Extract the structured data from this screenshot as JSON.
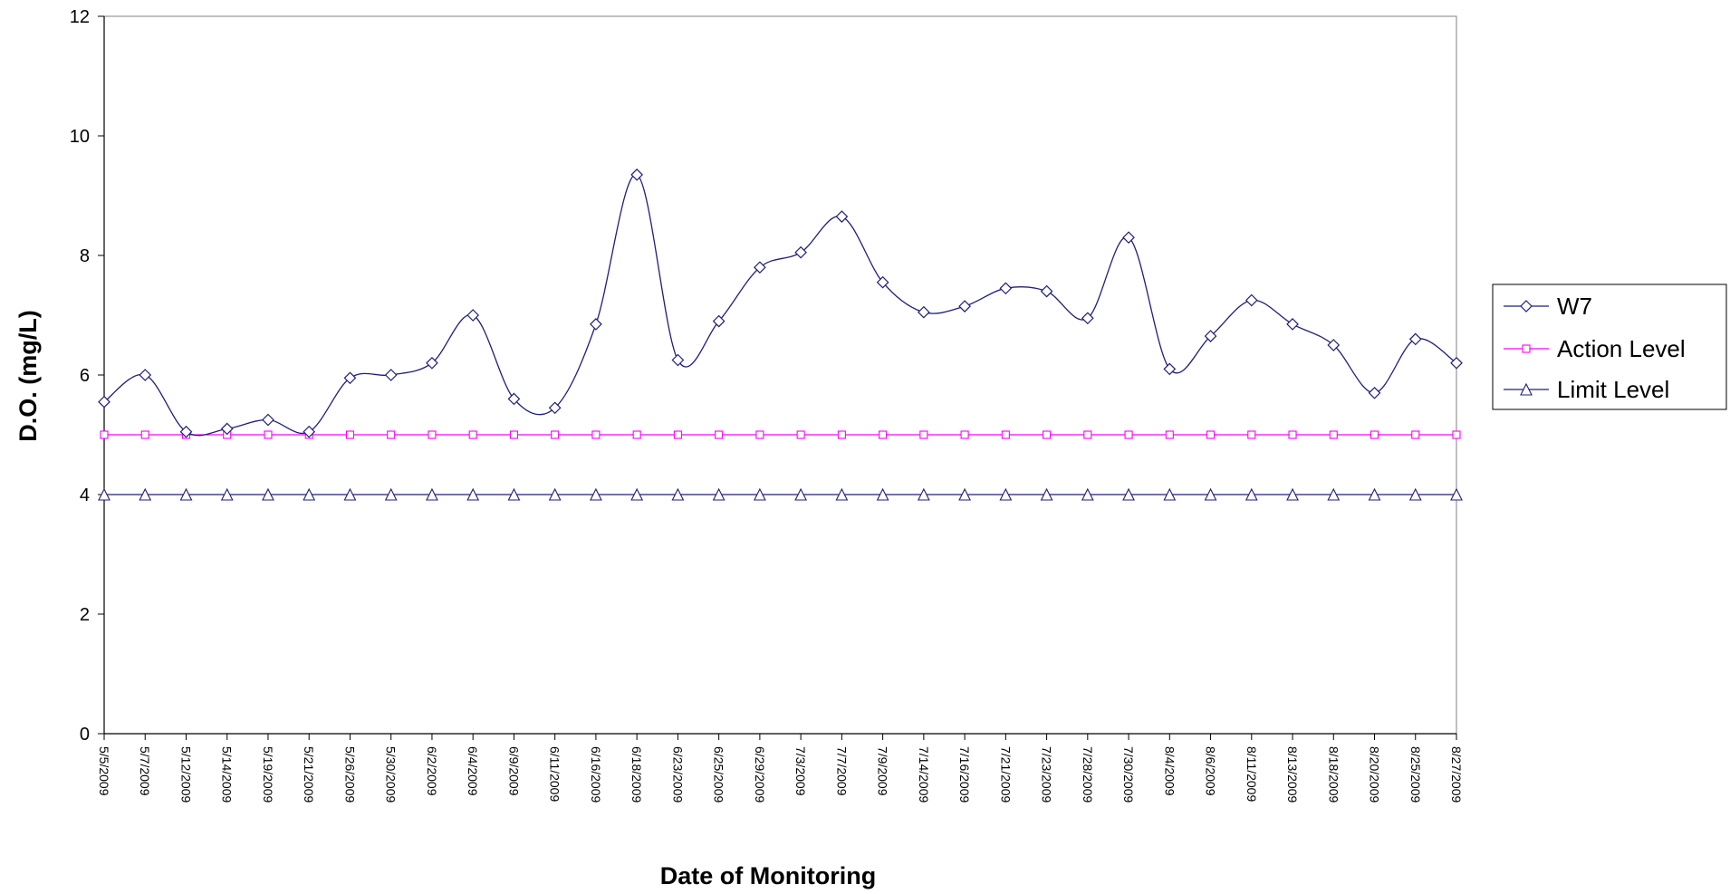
{
  "chart_data": {
    "type": "line",
    "title": "",
    "xlabel": "Date of Monitoring",
    "ylabel": "D.O. (mg/L)",
    "ylim": [
      0,
      12
    ],
    "yticks": [
      "0",
      "2",
      "4",
      "6",
      "8",
      "10",
      "12"
    ],
    "grid": false,
    "legend_position": "right",
    "categories": [
      "5/5/2009",
      "5/7/2009",
      "5/12/2009",
      "5/14/2009",
      "5/19/2009",
      "5/21/2009",
      "5/26/2009",
      "5/30/2009",
      "6/2/2009",
      "6/4/2009",
      "6/9/2009",
      "6/11/2009",
      "6/16/2009",
      "6/18/2009",
      "6/23/2009",
      "6/25/2009",
      "6/29/2009",
      "7/3/2009",
      "7/7/2009",
      "7/9/2009",
      "7/14/2009",
      "7/16/2009",
      "7/21/2009",
      "7/23/2009",
      "7/28/2009",
      "7/30/2009",
      "8/4/2009",
      "8/6/2009",
      "8/11/2009",
      "8/13/2009",
      "8/18/2009",
      "8/20/2009",
      "8/25/2009",
      "8/27/2009"
    ],
    "series": [
      {
        "name": "W7",
        "color": "#1f1f7a",
        "marker": "diamond",
        "smooth": true,
        "values": [
          5.55,
          6.0,
          5.05,
          5.1,
          5.25,
          5.05,
          5.95,
          6.0,
          6.2,
          7.0,
          5.6,
          5.45,
          6.85,
          9.35,
          6.25,
          6.9,
          7.8,
          8.05,
          8.65,
          7.55,
          7.05,
          7.15,
          7.45,
          7.4,
          6.95,
          8.3,
          6.1,
          6.65,
          7.25,
          6.85,
          6.5,
          5.7,
          6.6,
          6.2
        ]
      },
      {
        "name": "Action Level",
        "color": "#ff00ff",
        "marker": "square",
        "smooth": false,
        "values": [
          5,
          5,
          5,
          5,
          5,
          5,
          5,
          5,
          5,
          5,
          5,
          5,
          5,
          5,
          5,
          5,
          5,
          5,
          5,
          5,
          5,
          5,
          5,
          5,
          5,
          5,
          5,
          5,
          5,
          5,
          5,
          5,
          5,
          5
        ]
      },
      {
        "name": "Limit Level",
        "color": "#1f1f7a",
        "marker": "triangle",
        "smooth": false,
        "values": [
          4,
          4,
          4,
          4,
          4,
          4,
          4,
          4,
          4,
          4,
          4,
          4,
          4,
          4,
          4,
          4,
          4,
          4,
          4,
          4,
          4,
          4,
          4,
          4,
          4,
          4,
          4,
          4,
          4,
          4,
          4,
          4,
          4,
          4
        ]
      }
    ]
  }
}
